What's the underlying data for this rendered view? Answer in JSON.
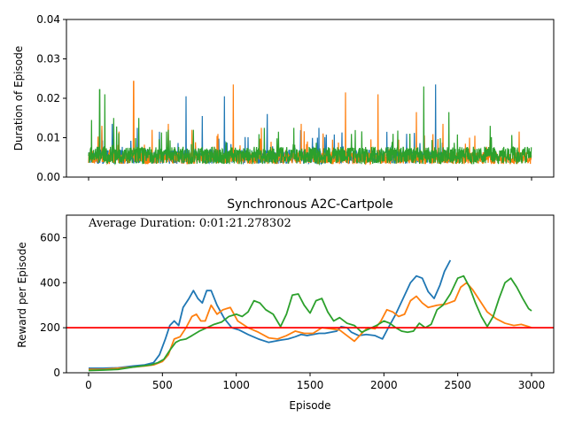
{
  "chart_data": [
    {
      "type": "line",
      "title": "",
      "xlabel": "",
      "ylabel": "Duration of Episode",
      "xlim": [
        -150,
        3150
      ],
      "ylim": [
        0,
        0.04
      ],
      "xticks": [
        0,
        500,
        1000,
        1500,
        2000,
        2500,
        3000
      ],
      "xtick_labels_shown": false,
      "yticks": [
        0.0,
        0.01,
        0.02,
        0.03,
        0.04
      ],
      "ytick_labels": [
        "0.00",
        "0.01",
        "0.02",
        "0.03",
        "0.04"
      ],
      "grid": false,
      "legend": "none",
      "colors": [
        "#1f77b4",
        "#ff7f0e",
        "#2ca02c"
      ],
      "series": [
        {
          "length": 2450,
          "base": 0.0052,
          "noise": 0.0018,
          "spikes": [
            [
              90,
              0.012
            ],
            [
              160,
              0.0135
            ],
            [
              330,
              0.0125
            ],
            [
              480,
              0.0115
            ],
            [
              660,
              0.0205
            ],
            [
              770,
              0.0155
            ],
            [
              920,
              0.0205
            ],
            [
              1210,
              0.016
            ],
            [
              1560,
              0.0125
            ],
            [
              2020,
              0.0115
            ],
            [
              2350,
              0.0235
            ]
          ]
        },
        {
          "length": 3000,
          "base": 0.0048,
          "noise": 0.0015,
          "spikes": [
            [
              90,
              0.013
            ],
            [
              305,
              0.0243
            ],
            [
              430,
              0.012
            ],
            [
              540,
              0.0135
            ],
            [
              700,
              0.012
            ],
            [
              980,
              0.0235
            ],
            [
              1170,
              0.0125
            ],
            [
              1440,
              0.0135
            ],
            [
              1740,
              0.0215
            ],
            [
              1960,
              0.021
            ],
            [
              2220,
              0.0165
            ],
            [
              2400,
              0.0135
            ],
            [
              2580,
              0.01
            ]
          ]
        },
        {
          "length": 3000,
          "base": 0.0055,
          "noise": 0.0022,
          "spikes": [
            [
              20,
              0.0145
            ],
            [
              75,
              0.0222
            ],
            [
              110,
              0.021
            ],
            [
              170,
              0.015
            ],
            [
              340,
              0.015
            ],
            [
              540,
              0.012
            ],
            [
              710,
              0.012
            ],
            [
              1190,
              0.0125
            ],
            [
              1390,
              0.0125
            ],
            [
              2270,
              0.023
            ],
            [
              2440,
              0.0165
            ],
            [
              2720,
              0.013
            ]
          ]
        }
      ]
    },
    {
      "type": "line",
      "title": "Synchronous A2C-Cartpole",
      "xlabel": "Episode",
      "ylabel": "Reward per Episode",
      "annotation": "Average Duration: 0:01:21.278302",
      "annotation_color": "#8b0000",
      "xlim": [
        -150,
        3150
      ],
      "ylim": [
        0,
        700
      ],
      "xticks": [
        0,
        500,
        1000,
        1500,
        2000,
        2500,
        3000
      ],
      "xtick_labels": [
        "0",
        "500",
        "1000",
        "1500",
        "2000",
        "2500",
        "3000"
      ],
      "yticks": [
        0,
        200,
        400,
        600
      ],
      "ytick_labels": [
        "0",
        "200",
        "400",
        "600"
      ],
      "hline": {
        "y": 200,
        "color": "#ff0000"
      },
      "grid": false,
      "legend": "none",
      "series": [
        {
          "color": "#1f77b4",
          "x": [
            0,
            100,
            200,
            300,
            380,
            440,
            480,
            520,
            550,
            580,
            610,
            640,
            680,
            710,
            740,
            770,
            800,
            830,
            870,
            920,
            970,
            1020,
            1080,
            1150,
            1220,
            1300,
            1350,
            1400,
            1440,
            1480,
            1520,
            1560,
            1600,
            1640,
            1680,
            1710,
            1750,
            1780,
            1830,
            1880,
            1940,
            1990,
            2030,
            2080,
            2130,
            2180,
            2220,
            2260,
            2300,
            2340,
            2380,
            2410,
            2450
          ],
          "y": [
            20,
            20,
            22,
            30,
            35,
            45,
            80,
            150,
            210,
            230,
            210,
            290,
            330,
            365,
            330,
            310,
            365,
            365,
            300,
            240,
            200,
            190,
            170,
            150,
            135,
            145,
            150,
            160,
            170,
            165,
            170,
            175,
            175,
            180,
            185,
            205,
            200,
            180,
            165,
            170,
            165,
            150,
            200,
            260,
            330,
            400,
            430,
            420,
            360,
            330,
            390,
            450,
            500
          ]
        },
        {
          "color": "#ff7f0e",
          "x": [
            0,
            100,
            200,
            300,
            380,
            440,
            500,
            540,
            580,
            620,
            660,
            700,
            730,
            760,
            790,
            830,
            870,
            910,
            960,
            1010,
            1080,
            1150,
            1220,
            1280,
            1340,
            1400,
            1460,
            1520,
            1580,
            1640,
            1700,
            1750,
            1800,
            1850,
            1890,
            1940,
            1980,
            2020,
            2060,
            2100,
            2140,
            2180,
            2220,
            2260,
            2300,
            2360,
            2420,
            2480,
            2520,
            2560,
            2600,
            2650,
            2700,
            2760,
            2820,
            2880,
            2930,
            2980,
            3000
          ],
          "y": [
            15,
            15,
            20,
            25,
            30,
            35,
            50,
            80,
            150,
            160,
            200,
            250,
            260,
            230,
            230,
            300,
            260,
            280,
            290,
            230,
            200,
            180,
            155,
            150,
            165,
            185,
            175,
            175,
            200,
            195,
            190,
            165,
            140,
            175,
            200,
            195,
            230,
            280,
            270,
            250,
            260,
            320,
            340,
            310,
            290,
            300,
            305,
            320,
            380,
            400,
            370,
            320,
            270,
            240,
            220,
            210,
            215,
            205,
            200
          ]
        },
        {
          "color": "#2ca02c",
          "x": [
            0,
            100,
            200,
            300,
            360,
            420,
            470,
            510,
            550,
            590,
            620,
            660,
            700,
            750,
            800,
            850,
            900,
            950,
            1000,
            1040,
            1080,
            1120,
            1160,
            1200,
            1250,
            1300,
            1340,
            1380,
            1420,
            1460,
            1500,
            1540,
            1580,
            1620,
            1660,
            1700,
            1750,
            1800,
            1850,
            1900,
            1950,
            2000,
            2040,
            2080,
            2120,
            2160,
            2200,
            2240,
            2280,
            2320,
            2360,
            2400,
            2450,
            2500,
            2540,
            2580,
            2620,
            2660,
            2700,
            2740,
            2780,
            2820,
            2860,
            2900,
            2940,
            2980,
            3000
          ],
          "y": [
            10,
            12,
            15,
            25,
            30,
            35,
            45,
            60,
            100,
            135,
            145,
            150,
            165,
            185,
            200,
            215,
            225,
            250,
            260,
            250,
            270,
            320,
            310,
            280,
            260,
            205,
            260,
            345,
            350,
            300,
            265,
            320,
            330,
            270,
            230,
            245,
            220,
            210,
            180,
            195,
            210,
            230,
            220,
            200,
            185,
            180,
            185,
            220,
            200,
            215,
            280,
            300,
            350,
            420,
            430,
            380,
            310,
            250,
            205,
            250,
            330,
            400,
            420,
            380,
            330,
            285,
            275
          ]
        }
      ]
    }
  ]
}
